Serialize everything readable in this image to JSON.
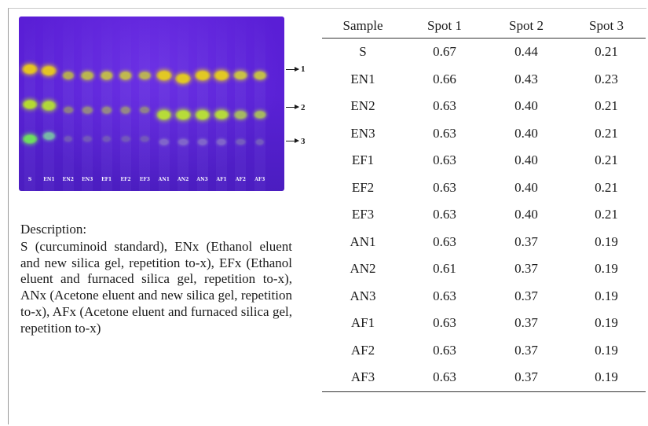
{
  "plate": {
    "lanes": [
      {
        "label": "S",
        "spots": [
          {
            "rf": 0.67,
            "color": "#e6c520",
            "size": 1.0
          },
          {
            "rf": 0.44,
            "color": "#b9e22a",
            "size": 0.9
          },
          {
            "rf": 0.21,
            "color": "#6fe65a",
            "size": 0.9
          }
        ]
      },
      {
        "label": "EN1",
        "spots": [
          {
            "rf": 0.66,
            "color": "#e4c424",
            "size": 1.0
          },
          {
            "rf": 0.43,
            "color": "#b5df34",
            "size": 0.9
          },
          {
            "rf": 0.23,
            "color": "#7fd7a0",
            "size": 0.6
          }
        ]
      },
      {
        "label": "EN2",
        "spots": [
          {
            "rf": 0.63,
            "color": "#c6c53a",
            "size": 0.6
          },
          {
            "rf": 0.4,
            "color": "#9c9a6a",
            "size": 0.4
          },
          {
            "rf": 0.21,
            "color": "#7c6ab0",
            "size": 0.3
          }
        ]
      },
      {
        "label": "EN3",
        "spots": [
          {
            "rf": 0.63,
            "color": "#c9cb3a",
            "size": 0.7
          },
          {
            "rf": 0.4,
            "color": "#a4a46a",
            "size": 0.45
          },
          {
            "rf": 0.21,
            "color": "#7c6ab0",
            "size": 0.3
          }
        ]
      },
      {
        "label": "EF1",
        "spots": [
          {
            "rf": 0.63,
            "color": "#d0cf38",
            "size": 0.7
          },
          {
            "rf": 0.4,
            "color": "#a5a66a",
            "size": 0.45
          },
          {
            "rf": 0.21,
            "color": "#7c6ab0",
            "size": 0.3
          }
        ]
      },
      {
        "label": "EF2",
        "spots": [
          {
            "rf": 0.63,
            "color": "#d0cf38",
            "size": 0.7
          },
          {
            "rf": 0.4,
            "color": "#a5a66a",
            "size": 0.45
          },
          {
            "rf": 0.21,
            "color": "#7c6ab0",
            "size": 0.3
          }
        ]
      },
      {
        "label": "EF3",
        "spots": [
          {
            "rf": 0.63,
            "color": "#cccc3a",
            "size": 0.6
          },
          {
            "rf": 0.4,
            "color": "#9f9f6c",
            "size": 0.4
          },
          {
            "rf": 0.21,
            "color": "#7c6ab0",
            "size": 0.3
          }
        ]
      },
      {
        "label": "AN1",
        "spots": [
          {
            "rf": 0.63,
            "color": "#e2c824",
            "size": 1.0
          },
          {
            "rf": 0.37,
            "color": "#b9e036",
            "size": 0.95
          },
          {
            "rf": 0.19,
            "color": "#8c78c8",
            "size": 0.45
          }
        ]
      },
      {
        "label": "AN2",
        "spots": [
          {
            "rf": 0.61,
            "color": "#e2c824",
            "size": 1.0
          },
          {
            "rf": 0.37,
            "color": "#b9e036",
            "size": 0.95
          },
          {
            "rf": 0.19,
            "color": "#8c78c8",
            "size": 0.45
          }
        ]
      },
      {
        "label": "AN3",
        "spots": [
          {
            "rf": 0.63,
            "color": "#e2c824",
            "size": 1.0
          },
          {
            "rf": 0.37,
            "color": "#b9e036",
            "size": 0.95
          },
          {
            "rf": 0.19,
            "color": "#8c78c8",
            "size": 0.45
          }
        ]
      },
      {
        "label": "AF1",
        "spots": [
          {
            "rf": 0.63,
            "color": "#e2c824",
            "size": 1.0
          },
          {
            "rf": 0.37,
            "color": "#b9e036",
            "size": 0.9
          },
          {
            "rf": 0.19,
            "color": "#8c78c8",
            "size": 0.45
          }
        ]
      },
      {
        "label": "AF2",
        "spots": [
          {
            "rf": 0.63,
            "color": "#d4d038",
            "size": 0.8
          },
          {
            "rf": 0.37,
            "color": "#b2d050",
            "size": 0.7
          },
          {
            "rf": 0.19,
            "color": "#8072b8",
            "size": 0.35
          }
        ]
      },
      {
        "label": "AF3",
        "spots": [
          {
            "rf": 0.63,
            "color": "#d0d038",
            "size": 0.75
          },
          {
            "rf": 0.37,
            "color": "#b4d24c",
            "size": 0.65
          },
          {
            "rf": 0.19,
            "color": "#8072b8",
            "size": 0.3
          }
        ]
      }
    ],
    "markers": [
      "1",
      "2",
      "3"
    ]
  },
  "description": {
    "title": "Description:",
    "body": "S (curcuminoid standard), ENx (Ethanol eluent and new silica gel, repetition to-x), EFx (Ethanol eluent and furnaced silica gel, repetition to-x), ANx (Acetone eluent and new silica gel, repetition to-x), AFx (Acetone eluent and furnaced silica gel, repetition to-x)"
  },
  "table": {
    "headers": [
      "Sample",
      "Spot 1",
      "Spot 2",
      "Spot 3"
    ],
    "rows": [
      [
        "S",
        "0.67",
        "0.44",
        "0.21"
      ],
      [
        "EN1",
        "0.66",
        "0.43",
        "0.23"
      ],
      [
        "EN2",
        "0.63",
        "0.40",
        "0.21"
      ],
      [
        "EN3",
        "0.63",
        "0.40",
        "0.21"
      ],
      [
        "EF1",
        "0.63",
        "0.40",
        "0.21"
      ],
      [
        "EF2",
        "0.63",
        "0.40",
        "0.21"
      ],
      [
        "EF3",
        "0.63",
        "0.40",
        "0.21"
      ],
      [
        "AN1",
        "0.63",
        "0.37",
        "0.19"
      ],
      [
        "AN2",
        "0.61",
        "0.37",
        "0.19"
      ],
      [
        "AN3",
        "0.63",
        "0.37",
        "0.19"
      ],
      [
        "AF1",
        "0.63",
        "0.37",
        "0.19"
      ],
      [
        "AF2",
        "0.63",
        "0.37",
        "0.19"
      ],
      [
        "AF3",
        "0.63",
        "0.37",
        "0.19"
      ]
    ]
  }
}
